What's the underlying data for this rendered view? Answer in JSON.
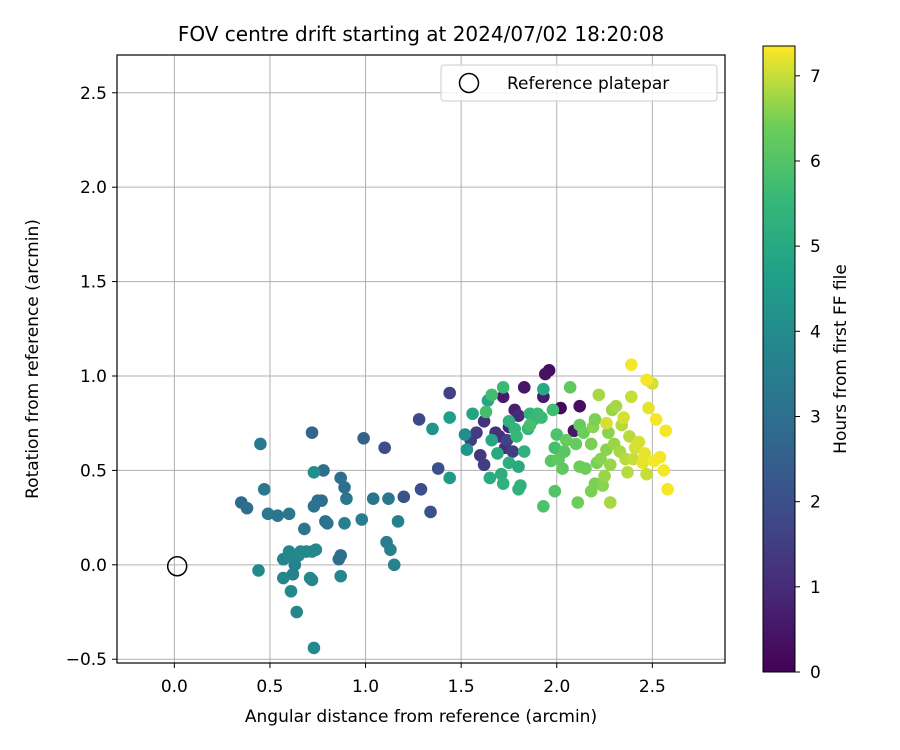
{
  "chart_data": {
    "type": "scatter",
    "title": "FOV centre drift starting at 2024/07/02 18:20:08",
    "xlabel": "Angular distance from reference (arcmin)",
    "ylabel": "Rotation from reference (arcmin)",
    "xlim": [
      -0.3,
      2.88
    ],
    "ylim": [
      -0.52,
      2.7
    ],
    "x_ticks": [
      "0.0",
      "0.5",
      "1.0",
      "1.5",
      "2.0",
      "2.5"
    ],
    "x_tick_values": [
      0.0,
      0.5,
      1.0,
      1.5,
      2.0,
      2.5
    ],
    "y_ticks": [
      "−0.5",
      "0.0",
      "0.5",
      "1.0",
      "1.5",
      "2.0",
      "2.5"
    ],
    "y_tick_values": [
      -0.5,
      0.0,
      0.5,
      1.0,
      1.5,
      2.0,
      2.5
    ],
    "grid": true,
    "legend_position": "upper-right",
    "legend_label": "Reference platepar",
    "reference_point": {
      "x": 0.0,
      "y": 0.0
    },
    "colorbar": {
      "label": "Hours from first FF file",
      "colormap": "viridis",
      "min": 0,
      "max": 7.35,
      "ticks": [
        "0",
        "1",
        "2",
        "3",
        "4",
        "5",
        "6",
        "7"
      ],
      "tick_values": [
        0,
        1,
        2,
        3,
        4,
        5,
        6,
        7
      ]
    },
    "points": [
      {
        "x": 2.02,
        "y": 0.83,
        "c": 0.2
      },
      {
        "x": 1.96,
        "y": 1.03,
        "c": 0.3
      },
      {
        "x": 1.94,
        "y": 1.01,
        "c": 0.4
      },
      {
        "x": 2.12,
        "y": 0.84,
        "c": 0.3
      },
      {
        "x": 2.09,
        "y": 0.71,
        "c": 0.5
      },
      {
        "x": 1.83,
        "y": 0.94,
        "c": 0.5
      },
      {
        "x": 1.72,
        "y": 0.89,
        "c": 0.6
      },
      {
        "x": 1.78,
        "y": 0.82,
        "c": 0.7
      },
      {
        "x": 1.93,
        "y": 0.89,
        "c": 0.6
      },
      {
        "x": 1.75,
        "y": 0.73,
        "c": 0.9
      },
      {
        "x": 1.7,
        "y": 0.68,
        "c": 1.0
      },
      {
        "x": 1.8,
        "y": 0.79,
        "c": 1.0
      },
      {
        "x": 1.73,
        "y": 0.62,
        "c": 1.1
      },
      {
        "x": 1.68,
        "y": 0.7,
        "c": 1.2
      },
      {
        "x": 1.62,
        "y": 0.76,
        "c": 1.2
      },
      {
        "x": 1.6,
        "y": 0.58,
        "c": 1.3
      },
      {
        "x": 1.55,
        "y": 0.66,
        "c": 1.5
      },
      {
        "x": 1.62,
        "y": 0.53,
        "c": 1.5
      },
      {
        "x": 1.44,
        "y": 0.91,
        "c": 1.6
      },
      {
        "x": 1.58,
        "y": 0.7,
        "c": 1.5
      },
      {
        "x": 1.77,
        "y": 0.6,
        "c": 1.5
      },
      {
        "x": 1.74,
        "y": 0.66,
        "c": 1.6
      },
      {
        "x": 1.28,
        "y": 0.77,
        "c": 1.8
      },
      {
        "x": 1.38,
        "y": 0.51,
        "c": 2.0
      },
      {
        "x": 1.1,
        "y": 0.62,
        "c": 2.0
      },
      {
        "x": 1.29,
        "y": 0.4,
        "c": 2.0
      },
      {
        "x": 1.2,
        "y": 0.36,
        "c": 2.1
      },
      {
        "x": 1.34,
        "y": 0.28,
        "c": 2.1
      },
      {
        "x": 0.72,
        "y": 0.7,
        "c": 2.7
      },
      {
        "x": 0.99,
        "y": 0.67,
        "c": 2.6
      },
      {
        "x": 0.78,
        "y": 0.5,
        "c": 3.0
      },
      {
        "x": 0.87,
        "y": 0.46,
        "c": 3.0
      },
      {
        "x": 0.89,
        "y": 0.41,
        "c": 3.0
      },
      {
        "x": 0.35,
        "y": 0.33,
        "c": 2.8
      },
      {
        "x": 0.38,
        "y": 0.3,
        "c": 3.0
      },
      {
        "x": 0.47,
        "y": 0.4,
        "c": 3.3
      },
      {
        "x": 0.45,
        "y": 0.64,
        "c": 3.4
      },
      {
        "x": 0.75,
        "y": 0.34,
        "c": 3.1
      },
      {
        "x": 0.77,
        "y": 0.34,
        "c": 3.0
      },
      {
        "x": 0.73,
        "y": 0.31,
        "c": 3.1
      },
      {
        "x": 0.68,
        "y": 0.19,
        "c": 3.2
      },
      {
        "x": 0.79,
        "y": 0.23,
        "c": 2.9
      },
      {
        "x": 0.8,
        "y": 0.22,
        "c": 3.1
      },
      {
        "x": 0.86,
        "y": 0.03,
        "c": 3.0
      },
      {
        "x": 0.87,
        "y": 0.05,
        "c": 3.0
      },
      {
        "x": 0.9,
        "y": 0.35,
        "c": 3.2
      },
      {
        "x": 1.04,
        "y": 0.35,
        "c": 3.2
      },
      {
        "x": 1.12,
        "y": 0.35,
        "c": 3.3
      },
      {
        "x": 0.98,
        "y": 0.24,
        "c": 3.5
      },
      {
        "x": 0.89,
        "y": 0.22,
        "c": 3.6
      },
      {
        "x": 1.11,
        "y": 0.12,
        "c": 3.5
      },
      {
        "x": 1.13,
        "y": 0.08,
        "c": 3.6
      },
      {
        "x": 1.17,
        "y": 0.23,
        "c": 3.6
      },
      {
        "x": 1.15,
        "y": 0.0,
        "c": 3.7
      },
      {
        "x": 0.49,
        "y": 0.27,
        "c": 3.3
      },
      {
        "x": 0.54,
        "y": 0.26,
        "c": 3.2
      },
      {
        "x": 0.6,
        "y": 0.27,
        "c": 3.3
      },
      {
        "x": 0.57,
        "y": 0.03,
        "c": 3.7
      },
      {
        "x": 0.6,
        "y": 0.07,
        "c": 3.8
      },
      {
        "x": 0.61,
        "y": 0.04,
        "c": 3.8
      },
      {
        "x": 0.65,
        "y": 0.05,
        "c": 3.9
      },
      {
        "x": 0.66,
        "y": 0.07,
        "c": 3.9
      },
      {
        "x": 0.63,
        "y": 0.0,
        "c": 3.7
      },
      {
        "x": 0.69,
        "y": 0.07,
        "c": 3.8
      },
      {
        "x": 0.72,
        "y": 0.07,
        "c": 3.9
      },
      {
        "x": 0.74,
        "y": 0.08,
        "c": 3.8
      },
      {
        "x": 0.62,
        "y": -0.05,
        "c": 3.6
      },
      {
        "x": 0.57,
        "y": -0.07,
        "c": 3.8
      },
      {
        "x": 0.71,
        "y": -0.07,
        "c": 3.9
      },
      {
        "x": 0.72,
        "y": -0.08,
        "c": 3.8
      },
      {
        "x": 0.87,
        "y": -0.06,
        "c": 3.8
      },
      {
        "x": 0.61,
        "y": -0.14,
        "c": 3.9
      },
      {
        "x": 0.64,
        "y": -0.25,
        "c": 3.8
      },
      {
        "x": 0.73,
        "y": -0.44,
        "c": 3.9
      },
      {
        "x": 0.44,
        "y": -0.03,
        "c": 3.9
      },
      {
        "x": 0.73,
        "y": 0.49,
        "c": 4.1
      },
      {
        "x": 1.52,
        "y": 0.69,
        "c": 4.0
      },
      {
        "x": 1.53,
        "y": 0.61,
        "c": 4.3
      },
      {
        "x": 1.35,
        "y": 0.72,
        "c": 4.3
      },
      {
        "x": 1.44,
        "y": 0.46,
        "c": 4.5
      },
      {
        "x": 1.44,
        "y": 0.78,
        "c": 4.6
      },
      {
        "x": 1.56,
        "y": 0.8,
        "c": 4.8
      },
      {
        "x": 1.64,
        "y": 0.87,
        "c": 4.9
      },
      {
        "x": 1.66,
        "y": 0.66,
        "c": 4.9
      },
      {
        "x": 1.69,
        "y": 0.59,
        "c": 5.0
      },
      {
        "x": 1.65,
        "y": 0.46,
        "c": 5.1
      },
      {
        "x": 1.71,
        "y": 0.48,
        "c": 5.2
      },
      {
        "x": 1.72,
        "y": 0.43,
        "c": 5.3
      },
      {
        "x": 1.75,
        "y": 0.54,
        "c": 5.2
      },
      {
        "x": 1.8,
        "y": 0.52,
        "c": 5.0
      },
      {
        "x": 1.81,
        "y": 0.42,
        "c": 5.3
      },
      {
        "x": 1.8,
        "y": 0.4,
        "c": 5.3
      },
      {
        "x": 1.83,
        "y": 0.6,
        "c": 5.3
      },
      {
        "x": 1.75,
        "y": 0.76,
        "c": 5.3
      },
      {
        "x": 1.78,
        "y": 0.72,
        "c": 5.4
      },
      {
        "x": 1.85,
        "y": 0.72,
        "c": 5.5
      },
      {
        "x": 1.79,
        "y": 0.68,
        "c": 5.5
      },
      {
        "x": 1.72,
        "y": 0.94,
        "c": 5.6
      },
      {
        "x": 1.66,
        "y": 0.9,
        "c": 5.7
      },
      {
        "x": 1.63,
        "y": 0.81,
        "c": 5.8
      },
      {
        "x": 1.86,
        "y": 0.8,
        "c": 5.4
      },
      {
        "x": 1.88,
        "y": 0.77,
        "c": 5.5
      },
      {
        "x": 1.9,
        "y": 0.8,
        "c": 5.6
      },
      {
        "x": 1.93,
        "y": 0.93,
        "c": 5.0
      },
      {
        "x": 1.92,
        "y": 0.78,
        "c": 5.6
      },
      {
        "x": 1.98,
        "y": 0.82,
        "c": 5.7
      },
      {
        "x": 1.86,
        "y": 0.74,
        "c": 5.8
      },
      {
        "x": 1.99,
        "y": 0.62,
        "c": 5.8
      },
      {
        "x": 2.0,
        "y": 0.69,
        "c": 5.9
      },
      {
        "x": 1.93,
        "y": 0.31,
        "c": 5.9
      },
      {
        "x": 1.99,
        "y": 0.39,
        "c": 6.0
      },
      {
        "x": 1.97,
        "y": 0.55,
        "c": 6.1
      },
      {
        "x": 2.01,
        "y": 0.56,
        "c": 6.2
      },
      {
        "x": 2.03,
        "y": 0.51,
        "c": 6.2
      },
      {
        "x": 2.04,
        "y": 0.6,
        "c": 6.1
      },
      {
        "x": 2.05,
        "y": 0.66,
        "c": 6.3
      },
      {
        "x": 2.1,
        "y": 0.64,
        "c": 6.3
      },
      {
        "x": 2.07,
        "y": 0.94,
        "c": 6.2
      },
      {
        "x": 2.12,
        "y": 0.74,
        "c": 6.3
      },
      {
        "x": 2.14,
        "y": 0.7,
        "c": 6.4
      },
      {
        "x": 2.11,
        "y": 0.33,
        "c": 6.4
      },
      {
        "x": 2.12,
        "y": 0.52,
        "c": 6.4
      },
      {
        "x": 2.15,
        "y": 0.51,
        "c": 6.4
      },
      {
        "x": 2.18,
        "y": 0.39,
        "c": 6.5
      },
      {
        "x": 2.2,
        "y": 0.43,
        "c": 6.5
      },
      {
        "x": 2.21,
        "y": 0.54,
        "c": 6.5
      },
      {
        "x": 2.18,
        "y": 0.64,
        "c": 6.5
      },
      {
        "x": 2.19,
        "y": 0.73,
        "c": 6.6
      },
      {
        "x": 2.2,
        "y": 0.77,
        "c": 6.5
      },
      {
        "x": 2.23,
        "y": 0.56,
        "c": 6.6
      },
      {
        "x": 2.24,
        "y": 0.42,
        "c": 6.6
      },
      {
        "x": 2.25,
        "y": 0.47,
        "c": 6.7
      },
      {
        "x": 2.26,
        "y": 0.61,
        "c": 6.6
      },
      {
        "x": 2.27,
        "y": 0.7,
        "c": 6.6
      },
      {
        "x": 2.28,
        "y": 0.53,
        "c": 6.7
      },
      {
        "x": 2.28,
        "y": 0.33,
        "c": 6.8
      },
      {
        "x": 2.3,
        "y": 0.64,
        "c": 6.7
      },
      {
        "x": 2.29,
        "y": 0.82,
        "c": 6.7
      },
      {
        "x": 2.31,
        "y": 0.84,
        "c": 6.8
      },
      {
        "x": 2.33,
        "y": 0.6,
        "c": 6.8
      },
      {
        "x": 2.34,
        "y": 0.74,
        "c": 6.9
      },
      {
        "x": 2.36,
        "y": 0.56,
        "c": 6.9
      },
      {
        "x": 2.37,
        "y": 0.49,
        "c": 6.9
      },
      {
        "x": 2.38,
        "y": 0.68,
        "c": 6.9
      },
      {
        "x": 2.39,
        "y": 0.89,
        "c": 7.0
      },
      {
        "x": 2.22,
        "y": 0.9,
        "c": 6.8
      },
      {
        "x": 2.26,
        "y": 0.75,
        "c": 7.1
      },
      {
        "x": 2.35,
        "y": 0.78,
        "c": 7.1
      },
      {
        "x": 2.4,
        "y": 0.56,
        "c": 7.0
      },
      {
        "x": 2.41,
        "y": 0.62,
        "c": 7.1
      },
      {
        "x": 2.43,
        "y": 0.65,
        "c": 7.1
      },
      {
        "x": 2.45,
        "y": 0.54,
        "c": 7.2
      },
      {
        "x": 2.46,
        "y": 0.59,
        "c": 7.2
      },
      {
        "x": 2.47,
        "y": 0.48,
        "c": 7.0
      },
      {
        "x": 2.48,
        "y": 0.83,
        "c": 7.2
      },
      {
        "x": 2.5,
        "y": 0.96,
        "c": 7.1
      },
      {
        "x": 2.51,
        "y": 0.55,
        "c": 7.3
      },
      {
        "x": 2.52,
        "y": 0.77,
        "c": 7.3
      },
      {
        "x": 2.54,
        "y": 0.57,
        "c": 7.3
      },
      {
        "x": 2.56,
        "y": 0.5,
        "c": 7.3
      },
      {
        "x": 2.57,
        "y": 0.71,
        "c": 7.3
      },
      {
        "x": 2.58,
        "y": 0.4,
        "c": 7.3
      },
      {
        "x": 2.39,
        "y": 1.06,
        "c": 7.3
      },
      {
        "x": 2.47,
        "y": 0.98,
        "c": 7.3
      }
    ]
  }
}
